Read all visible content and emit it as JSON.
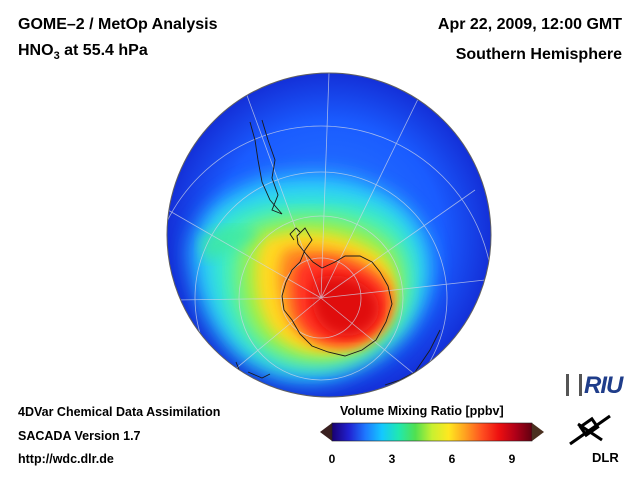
{
  "header": {
    "title_line1": "GOME–2 / MetOp Analysis",
    "title_line2_prefix": "HNO",
    "title_line2_sub": "3",
    "title_line2_suffix": " at 55.4 hPa",
    "date_line": "Apr 22, 2009, 12:00 GMT",
    "region_line": "Southern Hemisphere"
  },
  "footer": {
    "line1": "4DVar Chemical Data Assimilation",
    "line2": "SACADA Version 1.7",
    "line3": "http://wdc.dlr.de"
  },
  "colorbar": {
    "title": "Volume Mixing Ratio [ppbv]",
    "ticks": [
      "0",
      "3",
      "6",
      "9"
    ],
    "tick_values": [
      0,
      3,
      6,
      9
    ],
    "range": [
      0,
      10
    ],
    "colors": [
      "#1a0070",
      "#2020d0",
      "#1e78ff",
      "#14c8ff",
      "#20e8b0",
      "#50e050",
      "#c8f030",
      "#ffe820",
      "#ffa020",
      "#ff5020",
      "#ee1010",
      "#b00018",
      "#600010"
    ]
  },
  "logos": {
    "riu": "RIU",
    "dlr": "DLR"
  }
}
